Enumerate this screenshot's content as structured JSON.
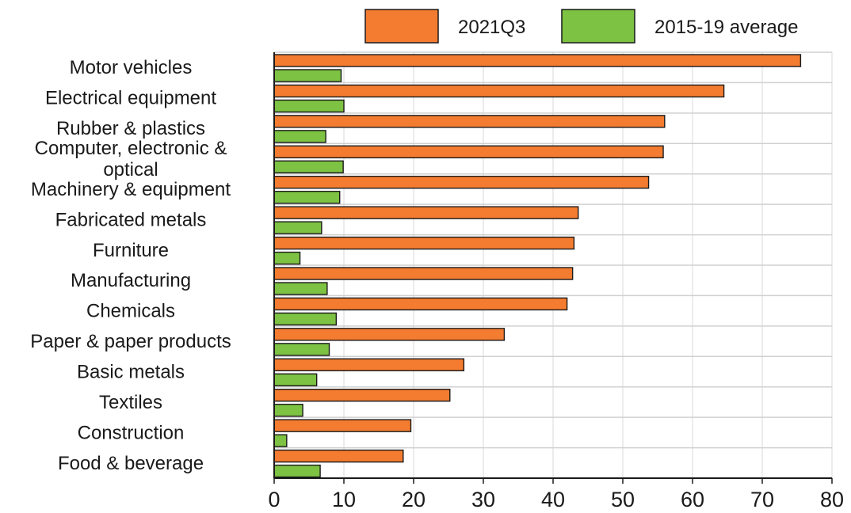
{
  "chart_data": {
    "type": "bar",
    "orientation": "horizontal",
    "title": "",
    "xlabel": "",
    "ylabel": "",
    "xlim": [
      0,
      80
    ],
    "x_ticks": [
      0,
      10,
      20,
      30,
      40,
      50,
      60,
      70,
      80
    ],
    "grid": "vertical gridlines and horizontal category separators",
    "legend_position": "top-right",
    "categories": [
      "Motor vehicles",
      "Electrical equipment",
      "Rubber & plastics",
      "Computer, electronic & optical",
      "Machinery & equipment",
      "Fabricated metals",
      "Furniture",
      "Manufacturing",
      "Chemicals",
      "Paper & paper products",
      "Basic metals",
      "Textiles",
      "Construction",
      "Food & beverage"
    ],
    "category_label_lines": [
      [
        "Motor vehicles"
      ],
      [
        "Electrical equipment"
      ],
      [
        "Rubber & plastics"
      ],
      [
        "Computer, electronic &",
        "optical"
      ],
      [
        "Machinery & equipment"
      ],
      [
        "Fabricated metals"
      ],
      [
        "Furniture"
      ],
      [
        "Manufacturing"
      ],
      [
        "Chemicals"
      ],
      [
        "Paper & paper products"
      ],
      [
        "Basic metals"
      ],
      [
        "Textiles"
      ],
      [
        "Construction"
      ],
      [
        "Food & beverage"
      ]
    ],
    "series": [
      {
        "name": "2021Q3",
        "color": "#f47c30",
        "values": [
          75.5,
          64.5,
          56,
          55.8,
          53.7,
          43.6,
          43,
          42.8,
          42,
          33,
          27.2,
          25.2,
          19.6,
          18.5
        ]
      },
      {
        "name": "2015-19 average",
        "color": "#7dc242",
        "values": [
          9.6,
          10,
          7.4,
          9.9,
          9.4,
          6.8,
          3.7,
          7.6,
          8.9,
          7.9,
          6.1,
          4.1,
          1.8,
          6.6
        ]
      }
    ]
  }
}
